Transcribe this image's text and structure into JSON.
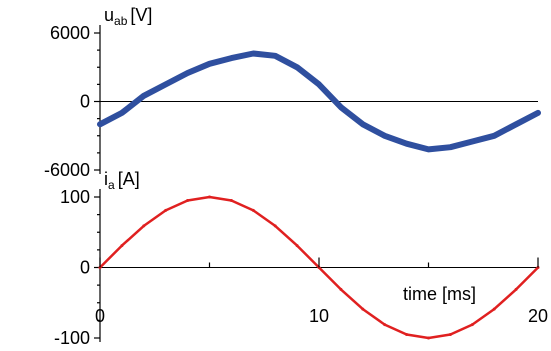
{
  "chart_data": [
    {
      "type": "line",
      "ylabel_main": "u",
      "ylabel_sub": "ab",
      "ylabel_unit": "[V]",
      "ylim": [
        -6000,
        6000
      ],
      "y_ticks": [
        6000,
        0,
        -6000
      ],
      "y_tick_labels": [
        "6000",
        "0",
        "-6000"
      ],
      "xlim": [
        0,
        20
      ],
      "grid": false,
      "color": "#2f4f9f",
      "series": [
        {
          "x": [
            0,
            1,
            2,
            3,
            4,
            5,
            6,
            7,
            8,
            9,
            10,
            11,
            12,
            13,
            14,
            15,
            16,
            17,
            18,
            19,
            20
          ],
          "values": [
            -2000,
            -1000,
            500,
            1500,
            2500,
            3300,
            3800,
            4200,
            4000,
            3000,
            1500,
            -500,
            -2000,
            -3000,
            -3700,
            -4200,
            -4000,
            -3500,
            -3000,
            -2000,
            -1000
          ]
        }
      ]
    },
    {
      "type": "line",
      "ylabel_main": "i",
      "ylabel_sub": "a",
      "ylabel_unit": "[A]",
      "ylim": [
        -100,
        100
      ],
      "y_ticks": [
        100,
        0,
        -100
      ],
      "y_tick_labels": [
        "100",
        "0",
        "-100"
      ],
      "xlim": [
        0,
        20
      ],
      "x_ticks": [
        0,
        10,
        20
      ],
      "x_tick_labels": [
        "0",
        "10",
        "20"
      ],
      "xlabel": "time [ms]",
      "grid": false,
      "color": "#e02020",
      "series": [
        {
          "x": [
            0,
            1,
            2,
            3,
            4,
            5,
            6,
            7,
            8,
            9,
            10,
            11,
            12,
            13,
            14,
            15,
            16,
            17,
            18,
            19,
            20
          ],
          "values": [
            0,
            31,
            59,
            81,
            95,
            100,
            95,
            81,
            59,
            31,
            0,
            -31,
            -59,
            -81,
            -95,
            -100,
            -95,
            -81,
            -59,
            -31,
            0
          ]
        }
      ]
    }
  ]
}
